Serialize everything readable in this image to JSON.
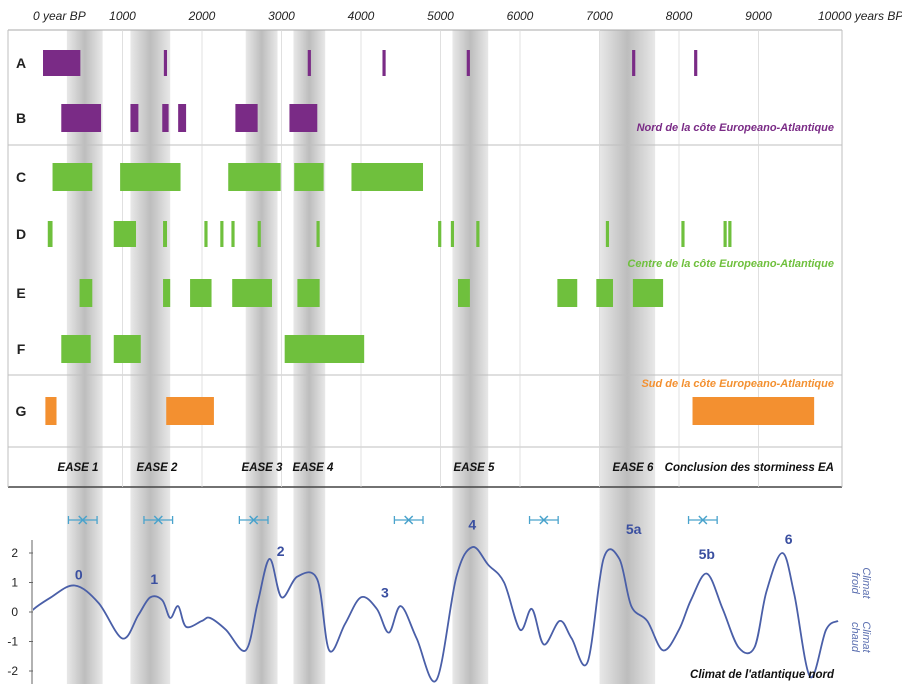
{
  "chart_data": {
    "type": "timeline",
    "x_axis": {
      "ticks": [
        0,
        1000,
        2000,
        3000,
        4000,
        5000,
        6000,
        7000,
        8000,
        9000,
        10000
      ],
      "tick_labels": [
        "0 year BP",
        "1000",
        "2000",
        "3000",
        "4000",
        "5000",
        "6000",
        "7000",
        "8000",
        "9000",
        "10000 years BP"
      ],
      "range": [
        0,
        10000
      ]
    },
    "rows": [
      "A",
      "B",
      "C",
      "D",
      "E",
      "F",
      "G"
    ],
    "regions": [
      {
        "label": "Nord de la côte Europeano-Atlantique",
        "color": "#7a2b86",
        "rows": [
          "A",
          "B"
        ]
      },
      {
        "label": "Centre de la côte Europeano-Atlantique",
        "color": "#6fc03d",
        "rows": [
          "C",
          "D",
          "E",
          "F"
        ]
      },
      {
        "label": "Sud de la côte Europeano-Atlantique",
        "color": "#f39030",
        "rows": [
          "G"
        ]
      }
    ],
    "storm_periods": {
      "A": [
        [
          0,
          470
        ],
        [
          1520,
          1560
        ],
        [
          3330,
          3370
        ],
        [
          4270,
          4310
        ],
        [
          5330,
          5370
        ],
        [
          7410,
          7450
        ],
        [
          8190,
          8230
        ]
      ],
      "B": [
        [
          230,
          730
        ],
        [
          1100,
          1200
        ],
        [
          1500,
          1580
        ],
        [
          1700,
          1800
        ],
        [
          2420,
          2700
        ],
        [
          3100,
          3450
        ]
      ],
      "C": [
        [
          120,
          620
        ],
        [
          970,
          1730
        ],
        [
          2330,
          2990
        ],
        [
          3160,
          3530
        ],
        [
          3880,
          4780
        ]
      ],
      "D": [
        [
          60,
          120
        ],
        [
          890,
          1170
        ],
        [
          1510,
          1560
        ],
        [
          2030,
          2070
        ],
        [
          2230,
          2270
        ],
        [
          2370,
          2410
        ],
        [
          2700,
          2740
        ],
        [
          3440,
          3480
        ],
        [
          4970,
          5010
        ],
        [
          5130,
          5170
        ],
        [
          5450,
          5490
        ],
        [
          7080,
          7120
        ],
        [
          8030,
          8070
        ],
        [
          8560,
          8600
        ],
        [
          8620,
          8660
        ]
      ],
      "E": [
        [
          460,
          620
        ],
        [
          1510,
          1600
        ],
        [
          1850,
          2120
        ],
        [
          2380,
          2880
        ],
        [
          3200,
          3480
        ],
        [
          5220,
          5370
        ],
        [
          6470,
          6720
        ],
        [
          6960,
          7170
        ],
        [
          7420,
          7800
        ]
      ],
      "F": [
        [
          230,
          600
        ],
        [
          890,
          1230
        ],
        [
          3040,
          4040
        ]
      ],
      "G": [
        [
          30,
          170
        ],
        [
          1550,
          2150
        ],
        [
          8170,
          9700
        ]
      ]
    },
    "ease_events": {
      "labels": [
        "EASE 1",
        "EASE 2",
        "EASE 3",
        "EASE 4",
        "EASE 5",
        "EASE 6"
      ],
      "bands": [
        [
          300,
          750
        ],
        [
          1100,
          1600
        ],
        [
          2550,
          2950
        ],
        [
          3150,
          3550
        ],
        [
          5150,
          5600
        ],
        [
          7000,
          7700
        ]
      ],
      "conclusion": "Conclusion des storminess EA"
    },
    "ice_rafting_events": {
      "centers": [
        500,
        1450,
        2650,
        4600,
        6300,
        8300
      ],
      "errors": [
        180,
        180,
        180,
        180,
        180,
        180
      ]
    },
    "climate_curve": {
      "y_ticks": [
        2,
        1,
        0,
        -1,
        -2
      ],
      "ylim": [
        -2.3,
        2.9
      ],
      "peak_labels": [
        {
          "label": "0",
          "x": 450,
          "y": 1.1
        },
        {
          "label": "1",
          "x": 1400,
          "y": 0.95
        },
        {
          "label": "2",
          "x": 2990,
          "y": 1.9
        },
        {
          "label": "3",
          "x": 4300,
          "y": 0.5
        },
        {
          "label": "4",
          "x": 5400,
          "y": 2.8
        },
        {
          "label": "5a",
          "x": 7430,
          "y": 2.65
        },
        {
          "label": "5b",
          "x": 8350,
          "y": 1.8
        },
        {
          "label": "6",
          "x": 9380,
          "y": 2.3
        }
      ],
      "x": [
        -500,
        -200,
        100,
        400,
        700,
        1000,
        1200,
        1350,
        1500,
        1600,
        1700,
        1800,
        2000,
        2100,
        2300,
        2550,
        2700,
        2850,
        3000,
        3200,
        3450,
        3600,
        3800,
        4000,
        4200,
        4350,
        4500,
        4700,
        4950,
        5200,
        5400,
        5600,
        5800,
        6000,
        6150,
        6300,
        6500,
        6650,
        6850,
        7050,
        7250,
        7400,
        7600,
        7800,
        8000,
        8150,
        8350,
        8550,
        8750,
        8950,
        9100,
        9300,
        9450,
        9650,
        9850,
        10000
      ],
      "y": [
        -1.1,
        -0.1,
        0.5,
        0.9,
        0.3,
        -0.9,
        -0.1,
        0.5,
        0.4,
        -0.2,
        0.2,
        -0.5,
        -0.3,
        -0.2,
        -0.6,
        -1.3,
        0.3,
        1.8,
        0.5,
        1.2,
        1.1,
        -1.3,
        -0.4,
        0.5,
        0.1,
        -0.7,
        0.2,
        -0.9,
        -2.3,
        1.2,
        2.2,
        1.6,
        1.0,
        -0.6,
        0.1,
        -1.1,
        -0.3,
        -0.9,
        -1.7,
        1.8,
        1.8,
        0.2,
        -0.3,
        -1.3,
        -0.6,
        0.4,
        1.3,
        0.1,
        -1.2,
        -1.2,
        0.7,
        2.0,
        0.6,
        -2.2,
        -0.6,
        -0.3
      ]
    }
  },
  "labels": {
    "warm_side": "Climat chaud",
    "cold_side": "Climat froid",
    "footer": "Climat de l'atlantique nord"
  },
  "colors": {
    "purple": "#7a2b86",
    "green": "#6fc03d",
    "orange": "#f39030",
    "grey_band": "#bdbdbd",
    "curve": "#4a5fa8",
    "irc_marker": "#4aa3cc"
  }
}
